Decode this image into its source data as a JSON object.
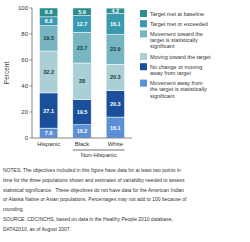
{
  "chart_data": {
    "type": "bar",
    "stacked": true,
    "data_labels": true,
    "grid": false,
    "ylabel": "Percent",
    "categories": [
      "Hispanic",
      "Black",
      "White"
    ],
    "series": [
      {
        "name": "Movement away from\nthe target is statistically\nsignificant",
        "color": "#5b8fd6",
        "values": [
          7.6,
          10.2,
          16.1
        ]
      },
      {
        "name": "No change or moving\naway from target",
        "color": "#1a4f9c",
        "values": [
          27.1,
          19.5,
          20.3
        ]
      },
      {
        "name": "Moving toward the target",
        "color": "#aacfd4",
        "values": [
          32.2,
          28.0,
          20.3
        ]
      },
      {
        "name": "Movement toward the\ntarget is statistically\nsignificant",
        "color": "#76b5c1",
        "values": [
          19.5,
          23.7,
          22.9
        ]
      },
      {
        "name": "Target met or exceeded",
        "color": "#3a9ab0",
        "values": [
          6.8,
          12.7,
          16.1
        ]
      },
      {
        "name": "Target met at baseline",
        "color": "#2d8c8c",
        "values": [
          6.8,
          5.9,
          4.2
        ]
      }
    ],
    "ylim": [
      0,
      100
    ],
    "yticks": [
      0,
      20,
      40,
      60,
      80,
      100
    ],
    "annotations": [
      "Non-Hispanic"
    ],
    "notes": [
      "NOTES: The objectives included in this figure have data for at least two points in",
      "time for the three populations shown and estimates of variability needed to assess",
      "statistical significance.  These objectives do not have data for the American Indian",
      "or Alaska Native or Asian populations. Percentages may not add to 100 because of",
      "rounding.",
      "SOURCE: CDC/NCHS, based on data in the Healthy People 2010 database,",
      "DATA2010, as of August 2007."
    ]
  }
}
